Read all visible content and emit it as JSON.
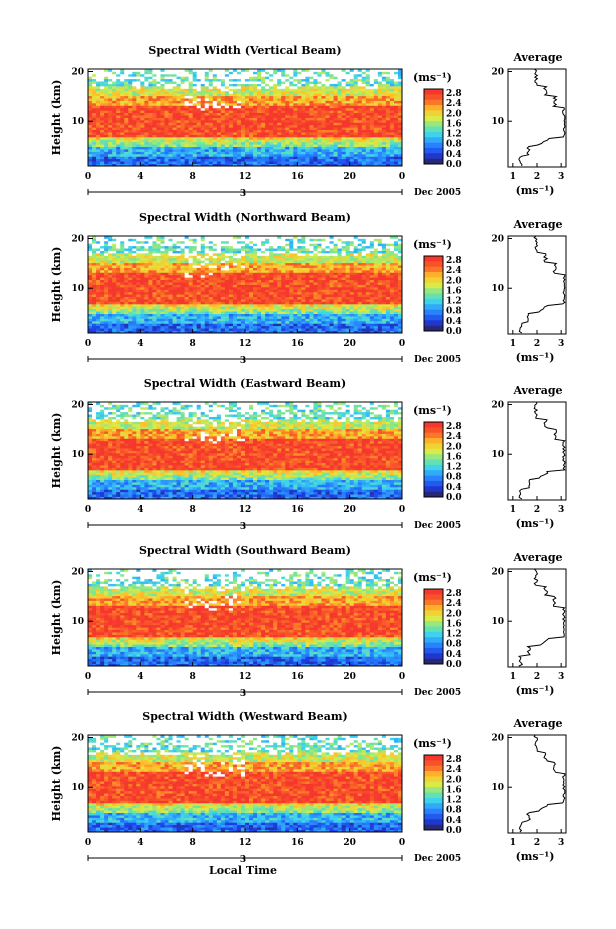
{
  "chart_data": [
    {
      "type": "heatmap",
      "title": "Spectral Width (Vertical Beam)",
      "ylabel": "Height (km)",
      "yticks": [
        "10",
        "20"
      ],
      "xticks": [
        "0",
        "4",
        "8",
        "12",
        "16",
        "20",
        "0"
      ],
      "date_marker": "3",
      "date_label": "Dec 2005",
      "colorbar": {
        "unit": "(ms⁻¹)",
        "ticks": [
          "2.8",
          "2.4",
          "2.0",
          "1.6",
          "1.2",
          "0.8",
          "0.4",
          "0.0"
        ]
      },
      "average": {
        "title": "Average",
        "xlabel": "(ms⁻¹)",
        "xticks": [
          "1",
          "2",
          "3"
        ],
        "yticks": [
          "10",
          "20"
        ]
      }
    },
    {
      "type": "heatmap",
      "title": "Spectral Width (Northward Beam)",
      "ylabel": "Height (km)",
      "yticks": [
        "10",
        "20"
      ],
      "xticks": [
        "0",
        "4",
        "8",
        "12",
        "16",
        "20",
        "0"
      ],
      "date_marker": "3",
      "date_label": "Dec 2005",
      "colorbar": {
        "unit": "(ms⁻¹)",
        "ticks": [
          "2.8",
          "2.4",
          "2.0",
          "1.6",
          "1.2",
          "0.8",
          "0.4",
          "0.0"
        ]
      },
      "average": {
        "title": "Average",
        "xlabel": "(ms⁻¹)",
        "xticks": [
          "1",
          "2",
          "3"
        ],
        "yticks": [
          "10",
          "20"
        ]
      }
    },
    {
      "type": "heatmap",
      "title": "Spectral Width (Eastward Beam)",
      "ylabel": "Height (km)",
      "yticks": [
        "10",
        "20"
      ],
      "xticks": [
        "0",
        "4",
        "8",
        "12",
        "16",
        "20",
        "0"
      ],
      "date_marker": "3",
      "date_label": "Dec 2005",
      "colorbar": {
        "unit": "(ms⁻¹)",
        "ticks": [
          "2.8",
          "2.4",
          "2.0",
          "1.6",
          "1.2",
          "0.8",
          "0.4",
          "0.0"
        ]
      },
      "average": {
        "title": "Average",
        "xlabel": "(ms⁻¹)",
        "xticks": [
          "1",
          "2",
          "3"
        ],
        "yticks": [
          "10",
          "20"
        ]
      }
    },
    {
      "type": "heatmap",
      "title": "Spectral Width (Southward Beam)",
      "ylabel": "Height (km)",
      "yticks": [
        "10",
        "20"
      ],
      "xticks": [
        "0",
        "4",
        "8",
        "12",
        "16",
        "20",
        "0"
      ],
      "date_marker": "3",
      "date_label": "Dec 2005",
      "colorbar": {
        "unit": "(ms⁻¹)",
        "ticks": [
          "2.8",
          "2.4",
          "2.0",
          "1.6",
          "1.2",
          "0.8",
          "0.4",
          "0.0"
        ]
      },
      "average": {
        "title": "Average",
        "xlabel": "(ms⁻¹)",
        "xticks": [
          "1",
          "2",
          "3"
        ],
        "yticks": [
          "10",
          "20"
        ]
      }
    },
    {
      "type": "heatmap",
      "title": "Spectral Width (Westward Beam)",
      "ylabel": "Height (km)",
      "yticks": [
        "10",
        "20"
      ],
      "xticks": [
        "0",
        "4",
        "8",
        "12",
        "16",
        "20",
        "0"
      ],
      "date_marker": "3",
      "date_label": "Dec 2005",
      "colorbar": {
        "unit": "(ms⁻¹)",
        "ticks": [
          "2.8",
          "2.4",
          "2.0",
          "1.6",
          "1.2",
          "0.8",
          "0.4",
          "0.0"
        ]
      },
      "average": {
        "title": "Average",
        "xlabel": "(ms⁻¹)",
        "xticks": [
          "1",
          "2",
          "3"
        ],
        "yticks": [
          "10",
          "20"
        ]
      },
      "xlabel": "Local Time"
    }
  ]
}
